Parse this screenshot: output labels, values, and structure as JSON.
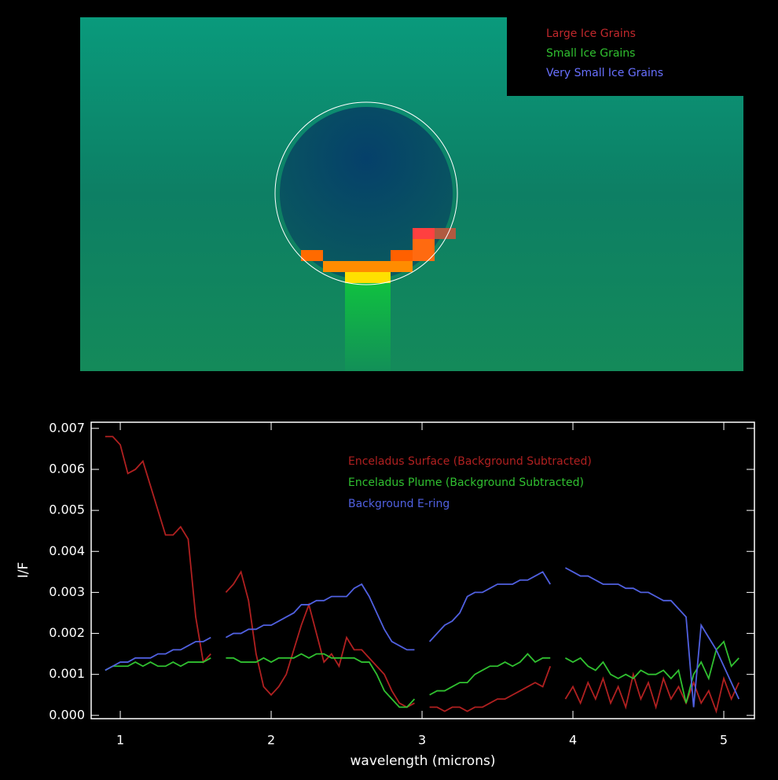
{
  "image": {
    "legend": [
      {
        "label": "Large Ice Grains",
        "color": "#c0282c"
      },
      {
        "label": "Small Ice Grains",
        "color": "#30c030"
      },
      {
        "label": "Very Small Ice Grains",
        "color": "#6870ff"
      }
    ]
  },
  "chart_data": {
    "type": "line",
    "xlabel": "wavelength (microns)",
    "ylabel": "I/F",
    "xlim": [
      0.807,
      5.203
    ],
    "ylim": [
      -8e-05,
      0.00715
    ],
    "xticks": [
      1,
      2,
      3,
      4,
      5
    ],
    "yticks": [
      {
        "value": 0,
        "label": "0.000"
      },
      {
        "value": 0.001,
        "label": "0.001"
      },
      {
        "value": 0.002,
        "label": "0.002"
      },
      {
        "value": 0.003,
        "label": "0.003"
      },
      {
        "value": 0.004,
        "label": "0.004"
      },
      {
        "value": 0.005,
        "label": "0.005"
      },
      {
        "value": 0.006,
        "label": "0.006"
      },
      {
        "value": 0.007,
        "label": "0.007"
      }
    ],
    "x": [
      0.9,
      0.95,
      1,
      1.05,
      1.1,
      1.15,
      1.2,
      1.25,
      1.3,
      1.35,
      1.4,
      1.45,
      1.5,
      1.55,
      1.6,
      1.65,
      1.7,
      1.75,
      1.8,
      1.85,
      1.9,
      1.95,
      2,
      2.05,
      2.1,
      2.15,
      2.2,
      2.25,
      2.3,
      2.35,
      2.4,
      2.45,
      2.5,
      2.55,
      2.6,
      2.65,
      2.7,
      2.75,
      2.8,
      2.85,
      2.9,
      2.95,
      3,
      3.05,
      3.1,
      3.15,
      3.2,
      3.25,
      3.3,
      3.35,
      3.4,
      3.45,
      3.5,
      3.55,
      3.6,
      3.65,
      3.7,
      3.75,
      3.8,
      3.85,
      3.9,
      3.95,
      4,
      4.05,
      4.1,
      4.15,
      4.2,
      4.25,
      4.3,
      4.35,
      4.4,
      4.45,
      4.5,
      4.55,
      4.6,
      4.65,
      4.7,
      4.75,
      4.8,
      4.85,
      4.9,
      4.95,
      5,
      5.05,
      5.1
    ],
    "series": [
      {
        "name": "Enceladus Surface (Background Subtracted)",
        "color": "#b02020",
        "values": [
          0.0068,
          0.0068,
          0.0066,
          0.0059,
          0.006,
          0.0062,
          0.0056,
          0.005,
          0.0044,
          0.0044,
          0.0046,
          0.0043,
          0.0024,
          0.0013,
          0.0015,
          null,
          0.003,
          0.0032,
          0.0035,
          0.0028,
          0.0015,
          0.0007,
          0.0005,
          0.0007,
          0.001,
          0.0016,
          0.0022,
          0.0027,
          0.002,
          0.0013,
          0.0015,
          0.0012,
          0.0019,
          0.0016,
          0.0016,
          0.0014,
          0.0012,
          0.001,
          0.0006,
          0.0003,
          0.0002,
          0.0003,
          null,
          0.0002,
          0.0002,
          0.0001,
          0.0002,
          0.0002,
          0.0001,
          0.0002,
          0.0002,
          0.0003,
          0.0004,
          0.0004,
          0.0005,
          0.0006,
          0.0007,
          0.0008,
          0.0007,
          0.0012,
          null,
          0.0004,
          0.0007,
          0.0003,
          0.0008,
          0.0004,
          0.0009,
          0.0003,
          0.0007,
          0.0002,
          0.001,
          0.0004,
          0.0008,
          0.0002,
          0.0009,
          0.0004,
          0.0007,
          0.0003,
          0.0008,
          0.0003,
          0.0006,
          0.0001,
          0.0009,
          0.0004,
          0.0008
        ]
      },
      {
        "name": "Enceladus Plume (Background Subtracted)",
        "color": "#30c030",
        "values": [
          0.0011,
          0.0012,
          0.0012,
          0.0012,
          0.0013,
          0.0012,
          0.0013,
          0.0012,
          0.0012,
          0.0013,
          0.0012,
          0.0013,
          0.0013,
          0.0013,
          0.0014,
          null,
          0.0014,
          0.0014,
          0.0013,
          0.0013,
          0.0013,
          0.0014,
          0.0013,
          0.0014,
          0.0014,
          0.0014,
          0.0015,
          0.0014,
          0.0015,
          0.0015,
          0.0014,
          0.0014,
          0.0014,
          0.0014,
          0.0013,
          0.0013,
          0.001,
          0.0006,
          0.0004,
          0.0002,
          0.0002,
          0.0004,
          null,
          0.0005,
          0.0006,
          0.0006,
          0.0007,
          0.0008,
          0.0008,
          0.001,
          0.0011,
          0.0012,
          0.0012,
          0.0013,
          0.0012,
          0.0013,
          0.0015,
          0.0013,
          0.0014,
          0.0014,
          null,
          0.0014,
          0.0013,
          0.0014,
          0.0012,
          0.0011,
          0.0013,
          0.001,
          0.0009,
          0.001,
          0.0009,
          0.0011,
          0.001,
          0.001,
          0.0011,
          0.0009,
          0.0011,
          0.0003,
          0.001,
          0.0013,
          0.0009,
          0.0016,
          0.0018,
          0.0012,
          0.0014
        ]
      },
      {
        "name": "Background E-ring",
        "color": "#5060e0",
        "values": [
          0.0011,
          0.0012,
          0.0013,
          0.0013,
          0.0014,
          0.0014,
          0.0014,
          0.0015,
          0.0015,
          0.0016,
          0.0016,
          0.0017,
          0.0018,
          0.0018,
          0.0019,
          null,
          0.0019,
          0.002,
          0.002,
          0.0021,
          0.0021,
          0.0022,
          0.0022,
          0.0023,
          0.0024,
          0.0025,
          0.0027,
          0.0027,
          0.0028,
          0.0028,
          0.0029,
          0.0029,
          0.0029,
          0.0031,
          0.0032,
          0.0029,
          0.0025,
          0.0021,
          0.0018,
          0.0017,
          0.0016,
          0.0016,
          null,
          0.0018,
          0.002,
          0.0022,
          0.0023,
          0.0025,
          0.0029,
          0.003,
          0.003,
          0.0031,
          0.0032,
          0.0032,
          0.0032,
          0.0033,
          0.0033,
          0.0034,
          0.0035,
          0.0032,
          null,
          0.0036,
          0.0035,
          0.0034,
          0.0034,
          0.0033,
          0.0032,
          0.0032,
          0.0032,
          0.0031,
          0.0031,
          0.003,
          0.003,
          0.0029,
          0.0028,
          0.0028,
          0.0026,
          0.0024,
          0.0002,
          0.0022,
          0.0019,
          0.0016,
          0.0012,
          0.0008,
          0.0004
        ]
      }
    ]
  }
}
